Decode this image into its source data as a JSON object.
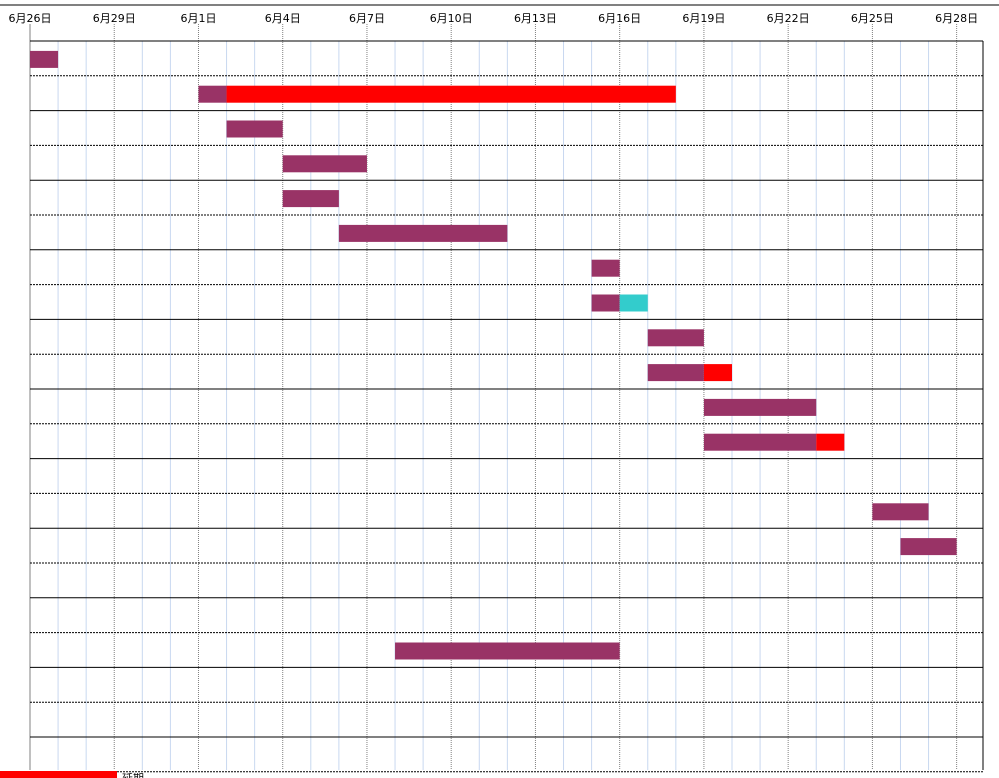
{
  "chart_data": {
    "type": "gantt",
    "x_axis": {
      "tick_labels": [
        "6月26日",
        "6月29日",
        "6月1日",
        "6月4日",
        "6月7日",
        "6月10日",
        "6月13日",
        "6月16日",
        "6月19日",
        "6月22日",
        "6月25日",
        "6月28日"
      ],
      "minor_step_days": 1,
      "major_step_days": 3
    },
    "rows": [
      {
        "segments": [
          {
            "start": 0,
            "days": 1,
            "kind": "planned"
          }
        ]
      },
      {
        "segments": [
          {
            "start": 6,
            "days": 1,
            "kind": "planned"
          },
          {
            "start": 7,
            "days": 16,
            "kind": "delay"
          }
        ]
      },
      {
        "segments": [
          {
            "start": 7,
            "days": 2,
            "kind": "planned"
          }
        ]
      },
      {
        "segments": [
          {
            "start": 9,
            "days": 3,
            "kind": "planned"
          }
        ]
      },
      {
        "segments": [
          {
            "start": 9,
            "days": 2,
            "kind": "planned"
          }
        ]
      },
      {
        "segments": [
          {
            "start": 11,
            "days": 6,
            "kind": "planned"
          }
        ]
      },
      {
        "segments": [
          {
            "start": 20,
            "days": 1,
            "kind": "planned"
          }
        ]
      },
      {
        "segments": [
          {
            "start": 20,
            "days": 1,
            "kind": "planned"
          },
          {
            "start": 21,
            "days": 1,
            "kind": "extra"
          }
        ]
      },
      {
        "segments": [
          {
            "start": 22,
            "days": 2,
            "kind": "planned"
          }
        ]
      },
      {
        "segments": [
          {
            "start": 22,
            "days": 2,
            "kind": "planned"
          },
          {
            "start": 24,
            "days": 1,
            "kind": "delay"
          }
        ]
      },
      {
        "segments": [
          {
            "start": 24,
            "days": 4,
            "kind": "planned"
          }
        ]
      },
      {
        "segments": [
          {
            "start": 24,
            "days": 4,
            "kind": "planned"
          },
          {
            "start": 28,
            "days": 1,
            "kind": "delay"
          }
        ]
      },
      {
        "segments": []
      },
      {
        "segments": [
          {
            "start": 30,
            "days": 2,
            "kind": "planned"
          }
        ]
      },
      {
        "segments": [
          {
            "start": 31,
            "days": 2,
            "kind": "planned"
          }
        ]
      },
      {
        "segments": []
      },
      {
        "segments": []
      },
      {
        "segments": [
          {
            "start": 13,
            "days": 8,
            "kind": "planned"
          }
        ]
      },
      {
        "segments": []
      },
      {
        "segments": []
      },
      {
        "segments": []
      }
    ],
    "colors": {
      "planned": "#993366",
      "delay": "#ff0000",
      "extra": "#33cccc",
      "grid_minor": "#c8d8f0",
      "grid_major": "#808080",
      "row_line": "#000000"
    },
    "legend": [
      {
        "label": "延期",
        "color": "#ff0000"
      }
    ]
  }
}
